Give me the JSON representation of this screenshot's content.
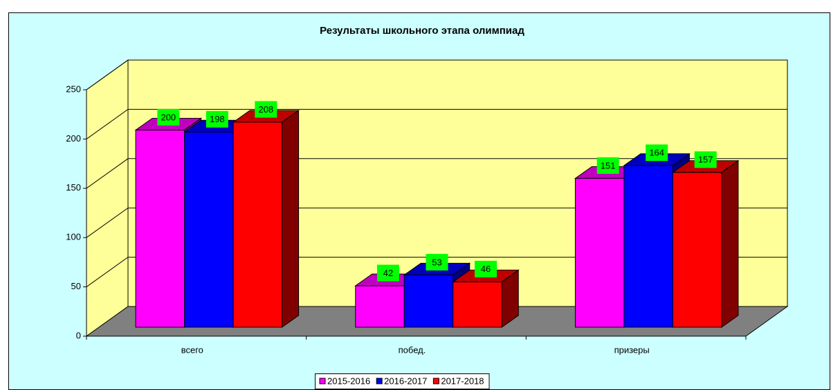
{
  "chart_data": {
    "type": "bar3d",
    "title": "Результаты школьного этапа олимпиад",
    "categories": [
      "всего",
      "побед.",
      "призеры"
    ],
    "series": [
      {
        "name": "2015-2016",
        "color": "#ff00ff",
        "values": [
          200,
          42,
          151
        ]
      },
      {
        "name": "2016-2017",
        "color": "#0000ff",
        "values": [
          198,
          53,
          164
        ]
      },
      {
        "name": "2017-2018",
        "color": "#ff0000",
        "values": [
          208,
          46,
          157
        ]
      }
    ],
    "ylim": [
      0,
      250
    ],
    "yticks": [
      0,
      50,
      100,
      150,
      200,
      250
    ],
    "grid": true,
    "legend": "bottom",
    "wall_color": "#ffff99",
    "floor_color": "#808080",
    "background": "#ccffff",
    "label_color": "#00ff00"
  }
}
